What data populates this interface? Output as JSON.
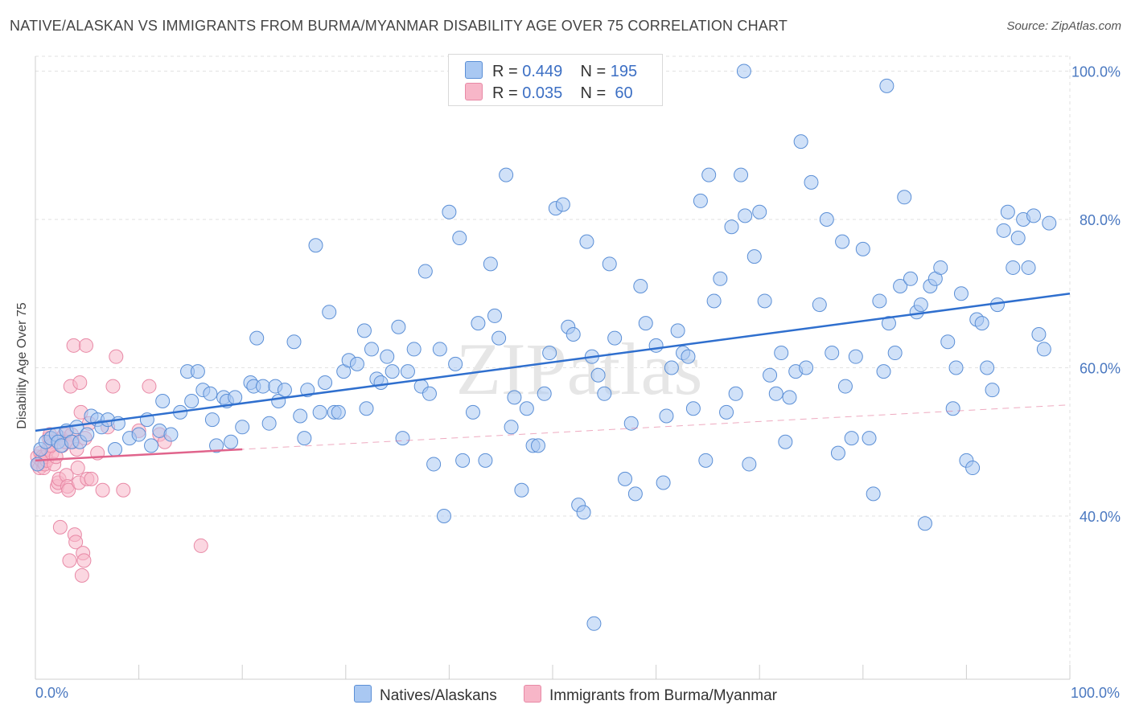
{
  "header": {
    "title": "NATIVE/ALASKAN VS IMMIGRANTS FROM BURMA/MYANMAR DISABILITY AGE OVER 75 CORRELATION CHART",
    "source": "Source: ZipAtlas.com"
  },
  "watermark": "ZIPatlas",
  "stats": {
    "row1": {
      "r_label": "R = ",
      "r_value": "0.449",
      "n_label": "N = ",
      "n_value": "195"
    },
    "row2": {
      "r_label": "R = ",
      "r_value": "0.035",
      "n_label": "N = ",
      "n_value": " 60"
    }
  },
  "colors": {
    "blue_fill": "#a9c8f2",
    "blue_stroke": "#5b8fd6",
    "blue_line": "#2f6fce",
    "pink_fill": "#f7b6c8",
    "pink_stroke": "#e889a6",
    "pink_line": "#e0648c",
    "grid": "#e2e2e2",
    "tick_label": "#4a78c0"
  },
  "chart_data": {
    "type": "scatter",
    "title": "NATIVE/ALASKAN VS IMMIGRANTS FROM BURMA/MYANMAR DISABILITY AGE OVER 75 CORRELATION CHART",
    "xlabel": "",
    "ylabel": "Disability Age Over 75",
    "xlim": [
      0,
      100
    ],
    "ylim": [
      18,
      102
    ],
    "x_tick_labels": [
      "0.0%",
      "100.0%"
    ],
    "y_ticks": [
      40,
      60,
      80,
      100
    ],
    "y_tick_labels": [
      "40.0%",
      "60.0%",
      "80.0%",
      "100.0%"
    ],
    "grid": true,
    "legend_position": "bottom",
    "series": [
      {
        "name": "Natives/Alaskans",
        "color": "#a9c8f2",
        "trend": {
          "x": [
            0,
            100
          ],
          "y": [
            51.5,
            70.0
          ],
          "style": "solid"
        },
        "points": [
          [
            0.2,
            47.0
          ],
          [
            0.5,
            49.0
          ],
          [
            1.0,
            50.0
          ],
          [
            1.5,
            50.5
          ],
          [
            2.0,
            51.0
          ],
          [
            2.2,
            50.0
          ],
          [
            2.5,
            49.5
          ],
          [
            3.0,
            51.5
          ],
          [
            3.5,
            50.0
          ],
          [
            4.0,
            52.0
          ],
          [
            4.3,
            50.0
          ],
          [
            5.0,
            51.0
          ],
          [
            5.4,
            53.5
          ],
          [
            6.0,
            53.0
          ],
          [
            6.4,
            52.0
          ],
          [
            7.0,
            53.0
          ],
          [
            7.7,
            49.0
          ],
          [
            8.0,
            52.5
          ],
          [
            9.1,
            50.5
          ],
          [
            10.0,
            51.0
          ],
          [
            10.8,
            53.0
          ],
          [
            11.2,
            49.5
          ],
          [
            12.0,
            51.5
          ],
          [
            12.3,
            55.5
          ],
          [
            13.1,
            51.0
          ],
          [
            14.0,
            54.0
          ],
          [
            14.7,
            59.5
          ],
          [
            15.1,
            55.5
          ],
          [
            15.7,
            59.5
          ],
          [
            16.2,
            57.0
          ],
          [
            16.9,
            56.5
          ],
          [
            17.1,
            53.0
          ],
          [
            17.5,
            49.5
          ],
          [
            18.2,
            56.0
          ],
          [
            18.5,
            55.5
          ],
          [
            18.9,
            50.0
          ],
          [
            19.3,
            56.0
          ],
          [
            20.0,
            52.0
          ],
          [
            20.8,
            58.0
          ],
          [
            21.1,
            57.5
          ],
          [
            21.4,
            64.0
          ],
          [
            22.0,
            57.5
          ],
          [
            22.6,
            52.5
          ],
          [
            23.2,
            57.5
          ],
          [
            23.5,
            55.5
          ],
          [
            24.1,
            57.0
          ],
          [
            25.0,
            63.5
          ],
          [
            25.6,
            53.5
          ],
          [
            26.0,
            50.5
          ],
          [
            26.3,
            57.0
          ],
          [
            27.1,
            76.5
          ],
          [
            27.5,
            54.0
          ],
          [
            28.0,
            58.0
          ],
          [
            28.4,
            67.5
          ],
          [
            28.9,
            54.0
          ],
          [
            29.3,
            54.0
          ],
          [
            29.8,
            59.5
          ],
          [
            30.3,
            61.0
          ],
          [
            31.1,
            60.5
          ],
          [
            31.8,
            65.0
          ],
          [
            32.0,
            54.5
          ],
          [
            32.5,
            62.5
          ],
          [
            33.0,
            58.5
          ],
          [
            33.4,
            58.0
          ],
          [
            34.0,
            61.5
          ],
          [
            34.5,
            59.5
          ],
          [
            35.1,
            65.5
          ],
          [
            35.5,
            50.5
          ],
          [
            36.0,
            59.5
          ],
          [
            36.6,
            62.5
          ],
          [
            37.3,
            57.5
          ],
          [
            37.7,
            73.0
          ],
          [
            38.1,
            56.5
          ],
          [
            38.5,
            47.0
          ],
          [
            39.1,
            62.5
          ],
          [
            39.5,
            40.0
          ],
          [
            40.0,
            81.0
          ],
          [
            40.6,
            60.5
          ],
          [
            41.0,
            77.5
          ],
          [
            41.3,
            47.5
          ],
          [
            42.3,
            54.0
          ],
          [
            42.8,
            66.0
          ],
          [
            43.5,
            47.5
          ],
          [
            44.0,
            74.0
          ],
          [
            44.4,
            67.0
          ],
          [
            44.8,
            64.0
          ],
          [
            45.5,
            86.0
          ],
          [
            46.0,
            52.0
          ],
          [
            46.3,
            56.0
          ],
          [
            47.0,
            43.5
          ],
          [
            47.5,
            54.5
          ],
          [
            48.1,
            49.5
          ],
          [
            48.6,
            49.5
          ],
          [
            49.2,
            56.5
          ],
          [
            49.7,
            62.0
          ],
          [
            50.3,
            81.5
          ],
          [
            51.0,
            82.0
          ],
          [
            51.5,
            65.5
          ],
          [
            52.0,
            64.5
          ],
          [
            52.5,
            41.5
          ],
          [
            53.0,
            40.5
          ],
          [
            53.3,
            77.0
          ],
          [
            53.8,
            61.5
          ],
          [
            54.4,
            59.0
          ],
          [
            55.0,
            56.5
          ],
          [
            55.5,
            74.0
          ],
          [
            56.0,
            64.0
          ],
          [
            57.0,
            45.0
          ],
          [
            57.6,
            52.5
          ],
          [
            58.0,
            43.0
          ],
          [
            58.5,
            71.0
          ],
          [
            59.0,
            66.0
          ],
          [
            60.0,
            63.0
          ],
          [
            60.7,
            44.5
          ],
          [
            61.0,
            53.5
          ],
          [
            61.5,
            60.0
          ],
          [
            62.1,
            65.0
          ],
          [
            62.6,
            62.0
          ],
          [
            63.1,
            61.5
          ],
          [
            63.6,
            54.5
          ],
          [
            64.3,
            82.5
          ],
          [
            64.8,
            47.5
          ],
          [
            65.1,
            86.0
          ],
          [
            65.6,
            69.0
          ],
          [
            66.2,
            72.0
          ],
          [
            66.8,
            54.0
          ],
          [
            67.3,
            79.0
          ],
          [
            67.7,
            56.5
          ],
          [
            68.2,
            86.0
          ],
          [
            68.6,
            80.5
          ],
          [
            69.0,
            47.0
          ],
          [
            69.5,
            75.0
          ],
          [
            70.0,
            81.0
          ],
          [
            70.5,
            69.0
          ],
          [
            71.0,
            59.0
          ],
          [
            71.6,
            56.5
          ],
          [
            72.1,
            62.0
          ],
          [
            72.5,
            50.0
          ],
          [
            72.9,
            56.0
          ],
          [
            73.5,
            59.5
          ],
          [
            74.0,
            90.5
          ],
          [
            74.5,
            60.0
          ],
          [
            75.0,
            85.0
          ],
          [
            75.8,
            68.5
          ],
          [
            76.5,
            80.0
          ],
          [
            77.0,
            62.0
          ],
          [
            77.6,
            48.5
          ],
          [
            78.0,
            77.0
          ],
          [
            78.3,
            57.5
          ],
          [
            78.9,
            50.5
          ],
          [
            79.3,
            61.5
          ],
          [
            80.0,
            76.0
          ],
          [
            80.6,
            50.5
          ],
          [
            81.0,
            43.0
          ],
          [
            81.6,
            69.0
          ],
          [
            82.0,
            59.5
          ],
          [
            82.5,
            66.0
          ],
          [
            83.1,
            62.0
          ],
          [
            83.6,
            71.0
          ],
          [
            84.0,
            83.0
          ],
          [
            84.6,
            72.0
          ],
          [
            85.2,
            67.5
          ],
          [
            85.6,
            68.5
          ],
          [
            86.0,
            39.0
          ],
          [
            86.5,
            71.0
          ],
          [
            87.0,
            72.0
          ],
          [
            87.5,
            73.5
          ],
          [
            88.2,
            63.5
          ],
          [
            88.7,
            54.5
          ],
          [
            89.0,
            60.0
          ],
          [
            89.5,
            70.0
          ],
          [
            90.0,
            47.5
          ],
          [
            90.6,
            46.5
          ],
          [
            91.0,
            66.5
          ],
          [
            91.5,
            66.0
          ],
          [
            92.0,
            60.0
          ],
          [
            92.5,
            57.0
          ],
          [
            93.0,
            68.5
          ],
          [
            93.6,
            78.5
          ],
          [
            94.0,
            81.0
          ],
          [
            94.5,
            73.5
          ],
          [
            95.0,
            77.5
          ],
          [
            95.5,
            80.0
          ],
          [
            96.0,
            73.5
          ],
          [
            96.5,
            80.5
          ],
          [
            97.0,
            64.5
          ],
          [
            97.5,
            62.5
          ],
          [
            98.0,
            79.5
          ],
          [
            68.5,
            100.0
          ],
          [
            82.3,
            98.0
          ],
          [
            54.0,
            25.5
          ]
        ]
      },
      {
        "name": "Immigrants from Burma/Myanmar",
        "color": "#f7b6c8",
        "trend": {
          "x": [
            0,
            20
          ],
          "y": [
            47.5,
            49.0
          ],
          "style": "solid"
        },
        "trend_extended": {
          "x": [
            0,
            100
          ],
          "y": [
            47.5,
            55.0
          ],
          "style": "dashed"
        },
        "points": [
          [
            0.2,
            48.0
          ],
          [
            0.3,
            47.0
          ],
          [
            0.4,
            46.5
          ],
          [
            0.5,
            48.5
          ],
          [
            0.6,
            47.5
          ],
          [
            0.7,
            48.0
          ],
          [
            0.8,
            46.5
          ],
          [
            0.9,
            47.0
          ],
          [
            1.0,
            48.0
          ],
          [
            1.1,
            47.5
          ],
          [
            1.2,
            49.0
          ],
          [
            1.3,
            50.5
          ],
          [
            1.4,
            51.0
          ],
          [
            1.5,
            50.0
          ],
          [
            1.6,
            48.5
          ],
          [
            1.8,
            47.0
          ],
          [
            2.0,
            48.0
          ],
          [
            2.1,
            44.0
          ],
          [
            2.2,
            44.5
          ],
          [
            2.3,
            45.0
          ],
          [
            2.4,
            38.5
          ],
          [
            2.5,
            50.5
          ],
          [
            2.6,
            49.5
          ],
          [
            2.8,
            51.0
          ],
          [
            2.9,
            50.0
          ],
          [
            3.0,
            45.5
          ],
          [
            3.1,
            44.0
          ],
          [
            3.2,
            43.5
          ],
          [
            3.3,
            34.0
          ],
          [
            3.4,
            57.5
          ],
          [
            3.5,
            51.0
          ],
          [
            3.6,
            50.0
          ],
          [
            3.7,
            63.0
          ],
          [
            3.8,
            37.5
          ],
          [
            3.9,
            36.5
          ],
          [
            4.0,
            49.0
          ],
          [
            4.1,
            46.5
          ],
          [
            4.2,
            44.5
          ],
          [
            4.3,
            58.0
          ],
          [
            4.4,
            54.0
          ],
          [
            4.5,
            32.0
          ],
          [
            4.6,
            35.0
          ],
          [
            4.7,
            34.0
          ],
          [
            4.8,
            50.5
          ],
          [
            4.9,
            63.0
          ],
          [
            5.0,
            45.0
          ],
          [
            5.2,
            52.5
          ],
          [
            5.4,
            45.0
          ],
          [
            6.0,
            48.5
          ],
          [
            6.5,
            43.5
          ],
          [
            7.0,
            52.0
          ],
          [
            7.5,
            57.5
          ],
          [
            7.8,
            61.5
          ],
          [
            8.5,
            43.5
          ],
          [
            10.0,
            51.5
          ],
          [
            11.0,
            57.5
          ],
          [
            12.0,
            51.0
          ],
          [
            12.5,
            50.0
          ],
          [
            16.0,
            36.0
          ],
          [
            1.5,
            49.5
          ]
        ]
      }
    ]
  }
}
